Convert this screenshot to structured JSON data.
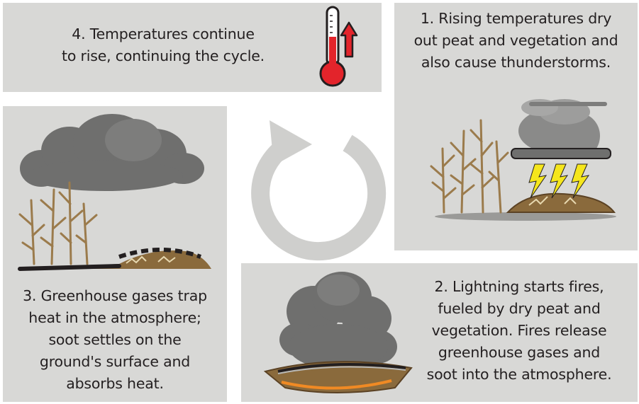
{
  "steps": [
    {
      "id": "step-1",
      "lines": [
        "1. Rising temperatures dry",
        "out peat and vegetation and",
        "also cause thunderstorms."
      ]
    },
    {
      "id": "step-2",
      "lines": [
        "2. Lightning starts fires,",
        "fueled by dry peat and",
        "vegetation. Fires release",
        "greenhouse gases and",
        "soot into the atmosphere."
      ]
    },
    {
      "id": "step-3",
      "lines": [
        "3. Greenhouse gases trap",
        "heat in the atmosphere;",
        "soot settles on the",
        "ground's surface and",
        "absorbs heat."
      ]
    },
    {
      "id": "step-4",
      "lines": [
        "4. Temperatures continue",
        "to rise, continuing the cycle."
      ]
    }
  ],
  "icons": {
    "thermometer": "thermometer-icon",
    "rising_arrow": "up-arrow-icon",
    "cycle": "cycle-arrow-icon",
    "lightning": "lightning-bolt-icon",
    "cloud": "cloud-icon",
    "tree": "dead-tree-icon"
  },
  "colors": {
    "panel_bg": "#d8d8d6",
    "text": "#231f20",
    "thermometer_red": "#e3242b",
    "lightning_yellow": "#f5e61c",
    "tree_brown": "#9b7b4c",
    "smoke_grey": "#6f6f6e",
    "cycle_arrow": "#cfcfcd"
  }
}
